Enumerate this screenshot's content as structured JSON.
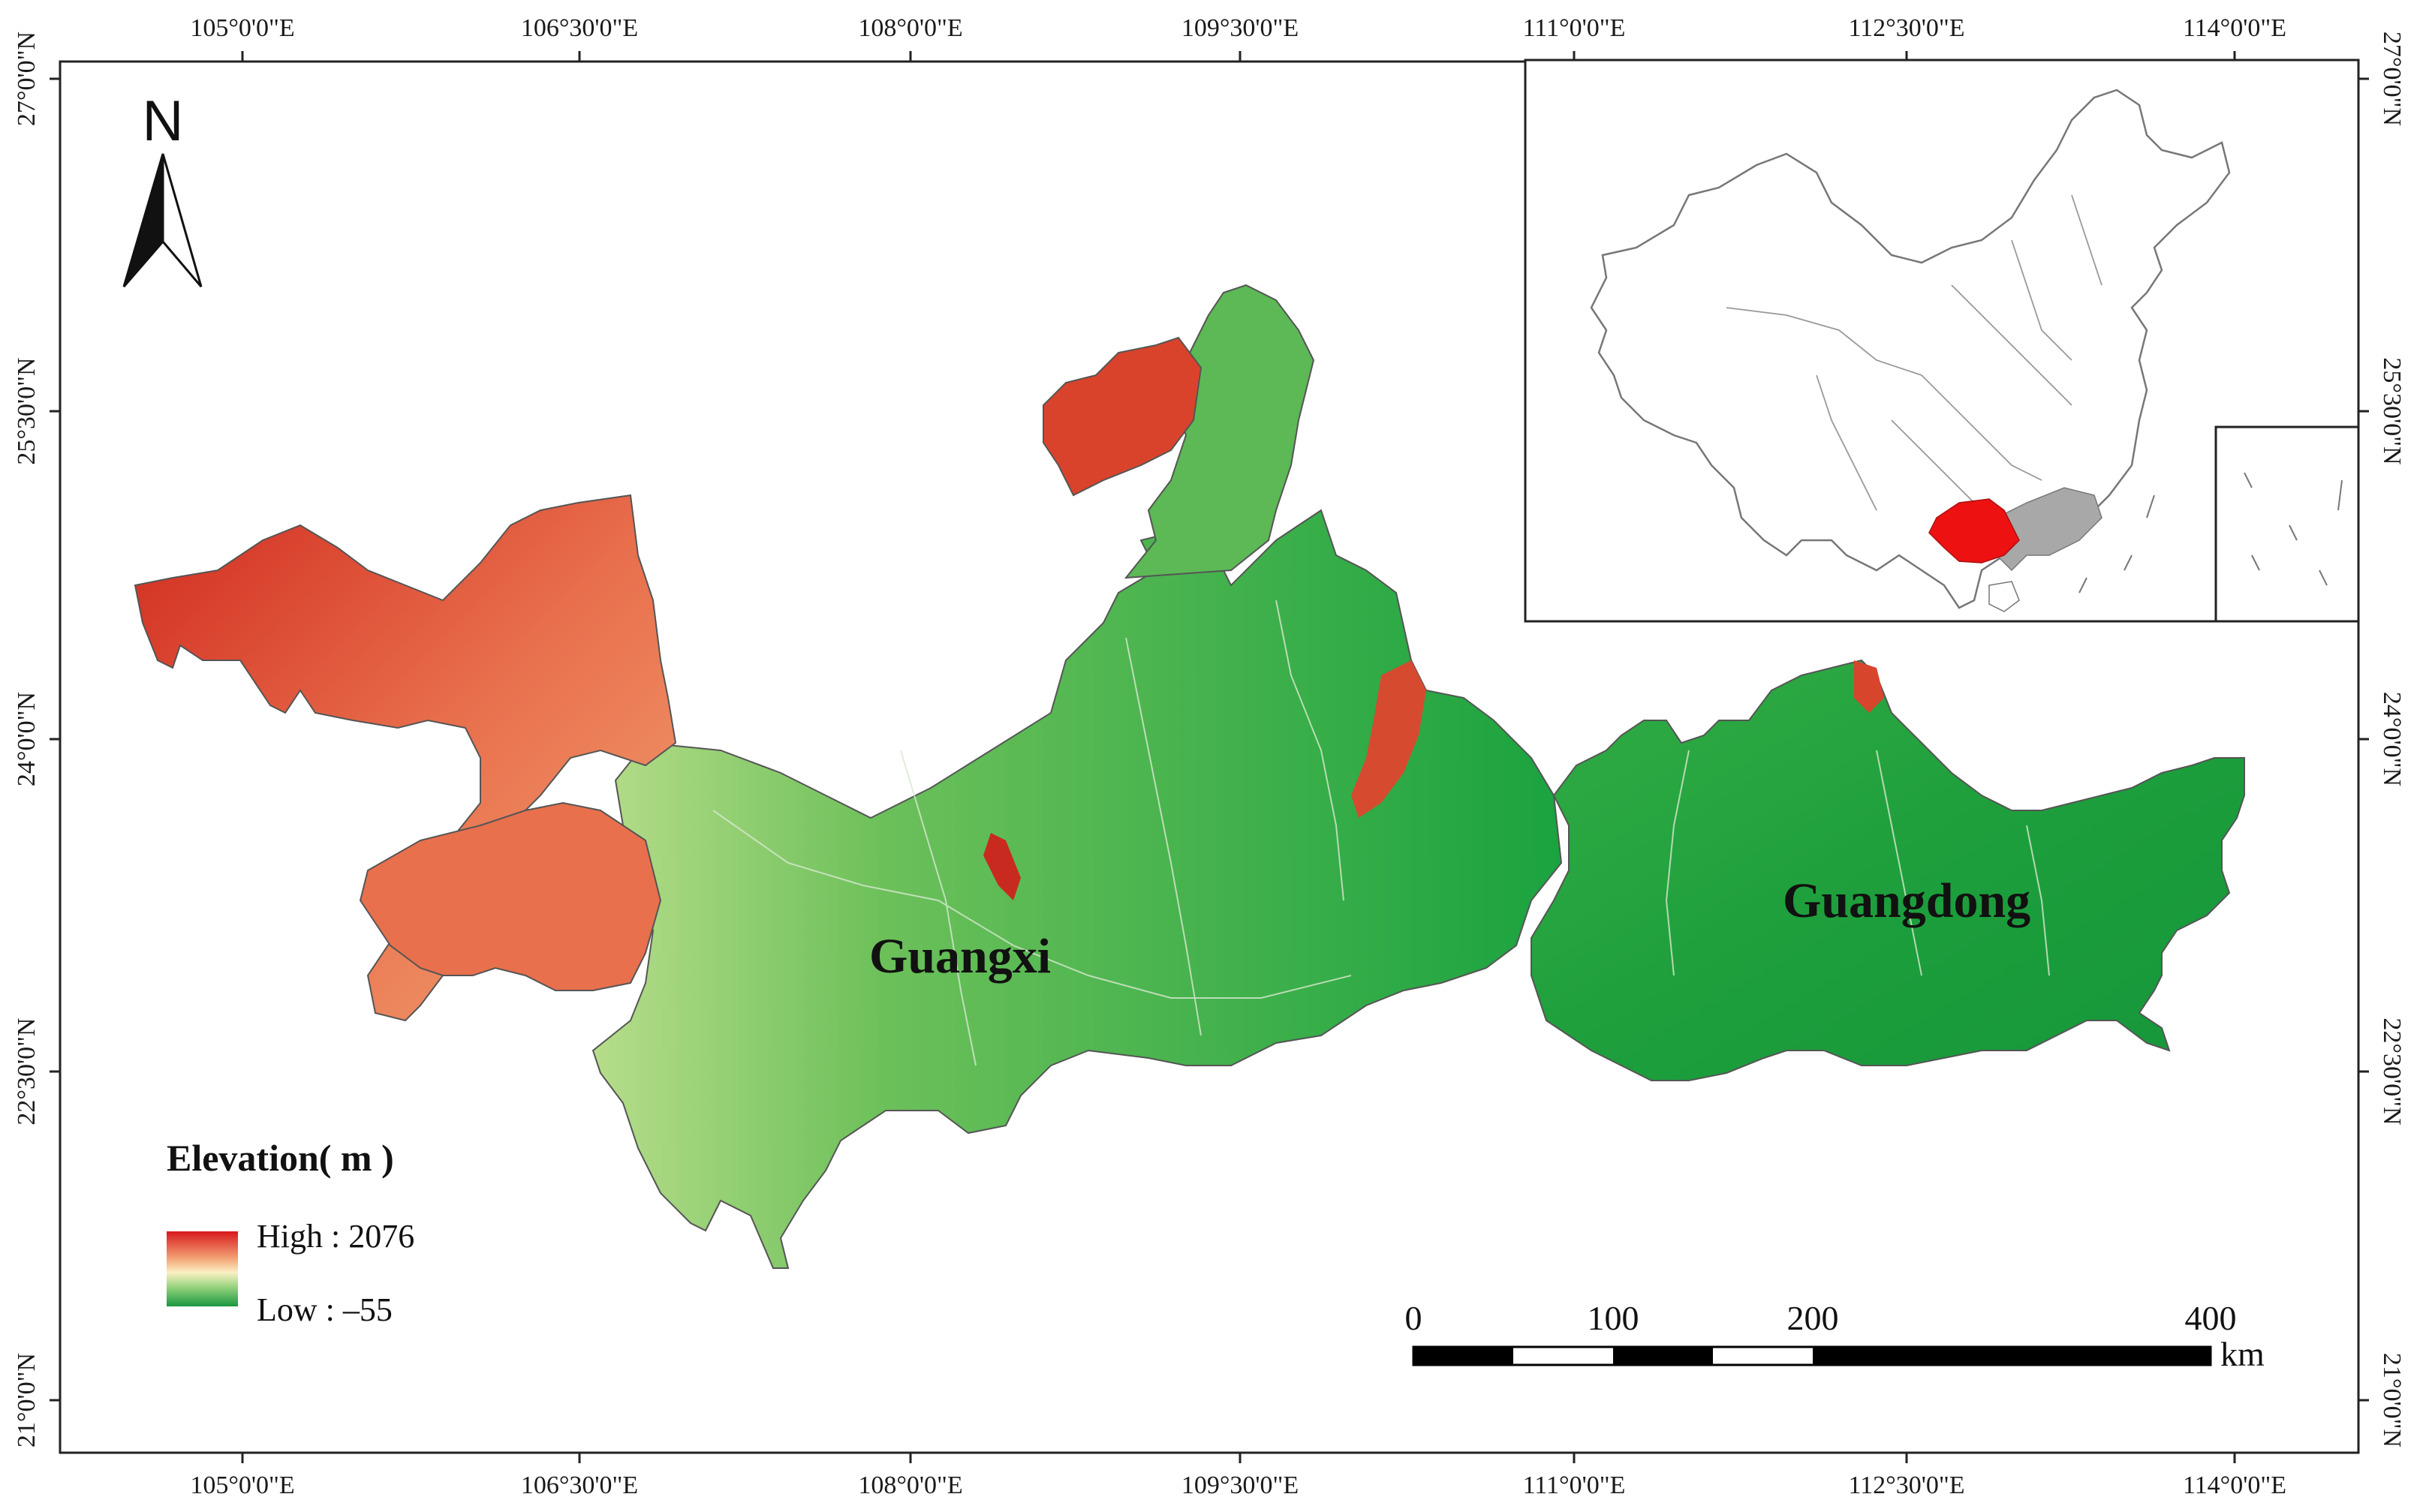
{
  "map": {
    "top_ticks": [
      "105°0'0\"E",
      "106°30'0\"E",
      "108°0'0\"E",
      "109°30'0\"E",
      "111°0'0\"E",
      "112°30'0\"E",
      "114°0'0\"E"
    ],
    "bottom_ticks": [
      "105°0'0\"E",
      "106°30'0\"E",
      "108°0'0\"E",
      "109°30'0\"E",
      "111°0'0\"E",
      "112°30'0\"E",
      "114°0'0\"E"
    ],
    "left_ticks": [
      "27°0'0\"N",
      "25°30'0\"N",
      "24°0'0\"N",
      "22°30'0\"N",
      "21°0'0\"N"
    ],
    "right_ticks": [
      "27°0'0\"N",
      "25°30'0\"N",
      "24°0'0\"N",
      "22°30'0\"N",
      "21°0'0\"N"
    ],
    "north_label": "N",
    "regions": {
      "guangxi": "Guangxi",
      "guangdong": "Guangdong"
    }
  },
  "legend": {
    "title": "Elevation( m )",
    "high_label": "High : 2076",
    "low_label": "Low : –55",
    "high_color": "#d7191c",
    "low_color": "#1a9641"
  },
  "scale_bar": {
    "labels": [
      "0",
      "100",
      "200",
      "400"
    ],
    "unit": "km"
  },
  "colors": {
    "high": "#d52a1f",
    "upper": "#f28c5c",
    "mid": "#f4e3a4",
    "lowmid": "#8fcf6c",
    "low": "#129f3a",
    "inset_highlight": "#ee1111",
    "inset_province": "#a8a8a8"
  }
}
